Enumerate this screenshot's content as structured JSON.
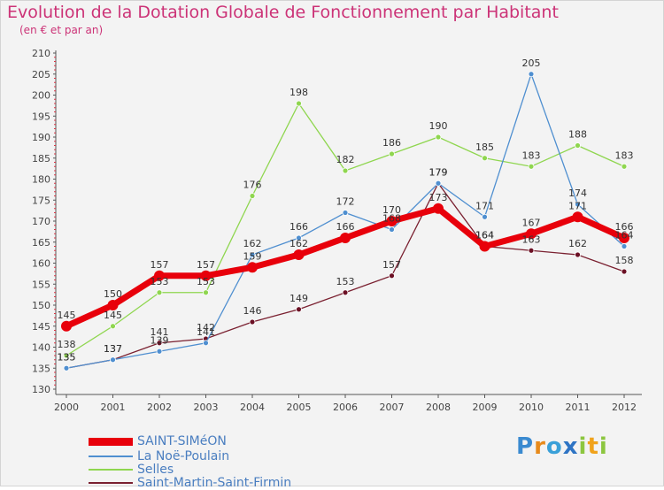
{
  "header": {
    "title": "Evolution de la Dotation Globale de Fonctionnement par Habitant",
    "subtitle": "(en € et par an)"
  },
  "logo": {
    "text": "Proxiti"
  },
  "chart_data": {
    "type": "line",
    "title": "Evolution de la Dotation Globale de Fonctionnement par Habitant",
    "subtitle": "(en € et par an)",
    "xlabel": "",
    "ylabel": "",
    "ylim": [
      130,
      210
    ],
    "ytick_step": 5,
    "grid": false,
    "legend_position": "bottom-left",
    "categories": [
      "2000",
      "2001",
      "2002",
      "2003",
      "2004",
      "2005",
      "2006",
      "2007",
      "2008",
      "2009",
      "2010",
      "2011",
      "2012"
    ],
    "series": [
      {
        "name": "SAINT-SIMéON",
        "color": "#e8000b",
        "values": [
          145,
          150,
          157,
          157,
          159,
          162,
          166,
          170,
          173,
          164,
          167,
          171,
          166
        ]
      },
      {
        "name": "La Noë-Poulain",
        "color": "#4f8fd0",
        "values": [
          135,
          137,
          139,
          141,
          162,
          166,
          172,
          168,
          179,
          171,
          205,
          174,
          164
        ]
      },
      {
        "name": "Selles",
        "color": "#8fd64f",
        "values": [
          138,
          145,
          153,
          153,
          176,
          198,
          182,
          186,
          190,
          185,
          183,
          188,
          183
        ]
      },
      {
        "name": "Saint-Martin-Saint-Firmin",
        "color": "#7a2030",
        "values": [
          135,
          137,
          141,
          142,
          146,
          149,
          153,
          157,
          179,
          164,
          163,
          162,
          158
        ]
      }
    ]
  }
}
